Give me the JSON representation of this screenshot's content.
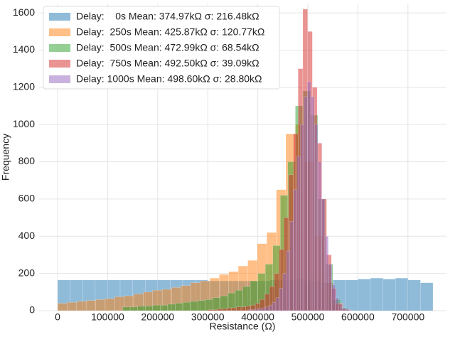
{
  "chart_data": {
    "type": "histogram",
    "xlabel": "Resistance (Ω)",
    "ylabel": "Frequency",
    "xlim": [
      -37000,
      777000
    ],
    "ylim": [
      0,
      1650
    ],
    "xticks": [
      0,
      100000,
      200000,
      300000,
      400000,
      500000,
      600000,
      700000
    ],
    "yticks": [
      0,
      200,
      400,
      600,
      800,
      1000,
      1200,
      1400,
      1600
    ],
    "grid": true,
    "legend": "upper left",
    "alpha": 0.5,
    "series": [
      {
        "name": "Delay:    0s Mean: 374.97kΩ σ: 216.48kΩ",
        "color": "#1f77b4",
        "bins": [
          0,
          25000,
          50000,
          75000,
          100000,
          125000,
          150000,
          175000,
          200000,
          225000,
          250000,
          275000,
          300000,
          325000,
          350000,
          375000,
          400000,
          425000,
          450000,
          475000,
          500000,
          525000,
          550000,
          575000,
          600000,
          625000,
          650000,
          675000,
          700000,
          725000,
          750000
        ],
        "values": [
          165,
          165,
          165,
          165,
          165,
          165,
          165,
          165,
          165,
          165,
          165,
          165,
          160,
          160,
          160,
          160,
          160,
          165,
          165,
          170,
          160,
          150,
          165,
          165,
          170,
          175,
          170,
          175,
          165,
          150
        ]
      },
      {
        "name": "Delay:  250s Mean: 425.87kΩ σ: 120.77kΩ",
        "color": "#ff7f0e",
        "bins": [
          0,
          19000,
          38000,
          57000,
          76000,
          95000,
          114000,
          133000,
          152000,
          171000,
          190000,
          209000,
          228000,
          247000,
          266000,
          285000,
          304000,
          323000,
          342000,
          361000,
          380000,
          399000,
          418000,
          437000,
          456000,
          475000,
          494000,
          513000,
          532000,
          551000,
          570000
        ],
        "values": [
          40,
          45,
          50,
          55,
          60,
          65,
          75,
          80,
          90,
          100,
          110,
          115,
          125,
          135,
          150,
          160,
          175,
          195,
          210,
          240,
          270,
          360,
          420,
          650,
          950,
          1000,
          800,
          400,
          150,
          40
        ]
      },
      {
        "name": "Delay:  500s Mean: 472.99kΩ σ: 68.54kΩ",
        "color": "#2ca02c",
        "bins": [
          130000,
          145000,
          160000,
          175000,
          190000,
          205000,
          220000,
          235000,
          250000,
          265000,
          280000,
          295000,
          310000,
          325000,
          340000,
          355000,
          370000,
          385000,
          400000,
          415000,
          430000,
          445000,
          460000,
          475000,
          490000,
          505000,
          520000,
          535000,
          550000,
          565000,
          580000
        ],
        "values": [
          20,
          20,
          25,
          25,
          30,
          30,
          35,
          40,
          45,
          50,
          55,
          60,
          70,
          80,
          95,
          110,
          130,
          160,
          200,
          250,
          350,
          620,
          800,
          1100,
          1180,
          1050,
          600,
          250,
          60,
          15
        ]
      },
      {
        "name": "Delay:  750s Mean: 492.50kΩ σ: 39.09kΩ",
        "color": "#d62728",
        "bins": [
          300000,
          309500,
          319000,
          328500,
          338000,
          347500,
          357000,
          366500,
          376000,
          385500,
          395000,
          404500,
          414000,
          423500,
          433000,
          442500,
          452000,
          461500,
          471000,
          480500,
          490000,
          499500,
          509000,
          518500,
          528000,
          537500,
          547000,
          556500,
          566000,
          575500,
          585000
        ],
        "values": [
          5,
          5,
          10,
          10,
          15,
          15,
          20,
          20,
          25,
          30,
          40,
          60,
          90,
          130,
          200,
          330,
          500,
          730,
          950,
          1300,
          1620,
          1500,
          1200,
          900,
          600,
          300,
          120,
          40,
          10,
          5
        ]
      },
      {
        "name": "Delay: 1000s Mean: 498.60kΩ σ: 28.80kΩ",
        "color": "#9467bd",
        "bins": [
          380000,
          387000,
          394000,
          401000,
          408000,
          415000,
          422000,
          429000,
          436000,
          443000,
          450000,
          457000,
          464000,
          471000,
          478000,
          485000,
          492000,
          499000,
          506000,
          513000,
          520000,
          527000,
          534000,
          541000,
          548000,
          555000,
          562000,
          569000,
          576000,
          583000,
          590000
        ],
        "values": [
          5,
          5,
          10,
          10,
          15,
          20,
          30,
          45,
          70,
          120,
          200,
          320,
          480,
          650,
          830,
          1000,
          1150,
          1230,
          1150,
          1000,
          800,
          600,
          400,
          250,
          140,
          70,
          35,
          15,
          8,
          3
        ]
      }
    ]
  }
}
